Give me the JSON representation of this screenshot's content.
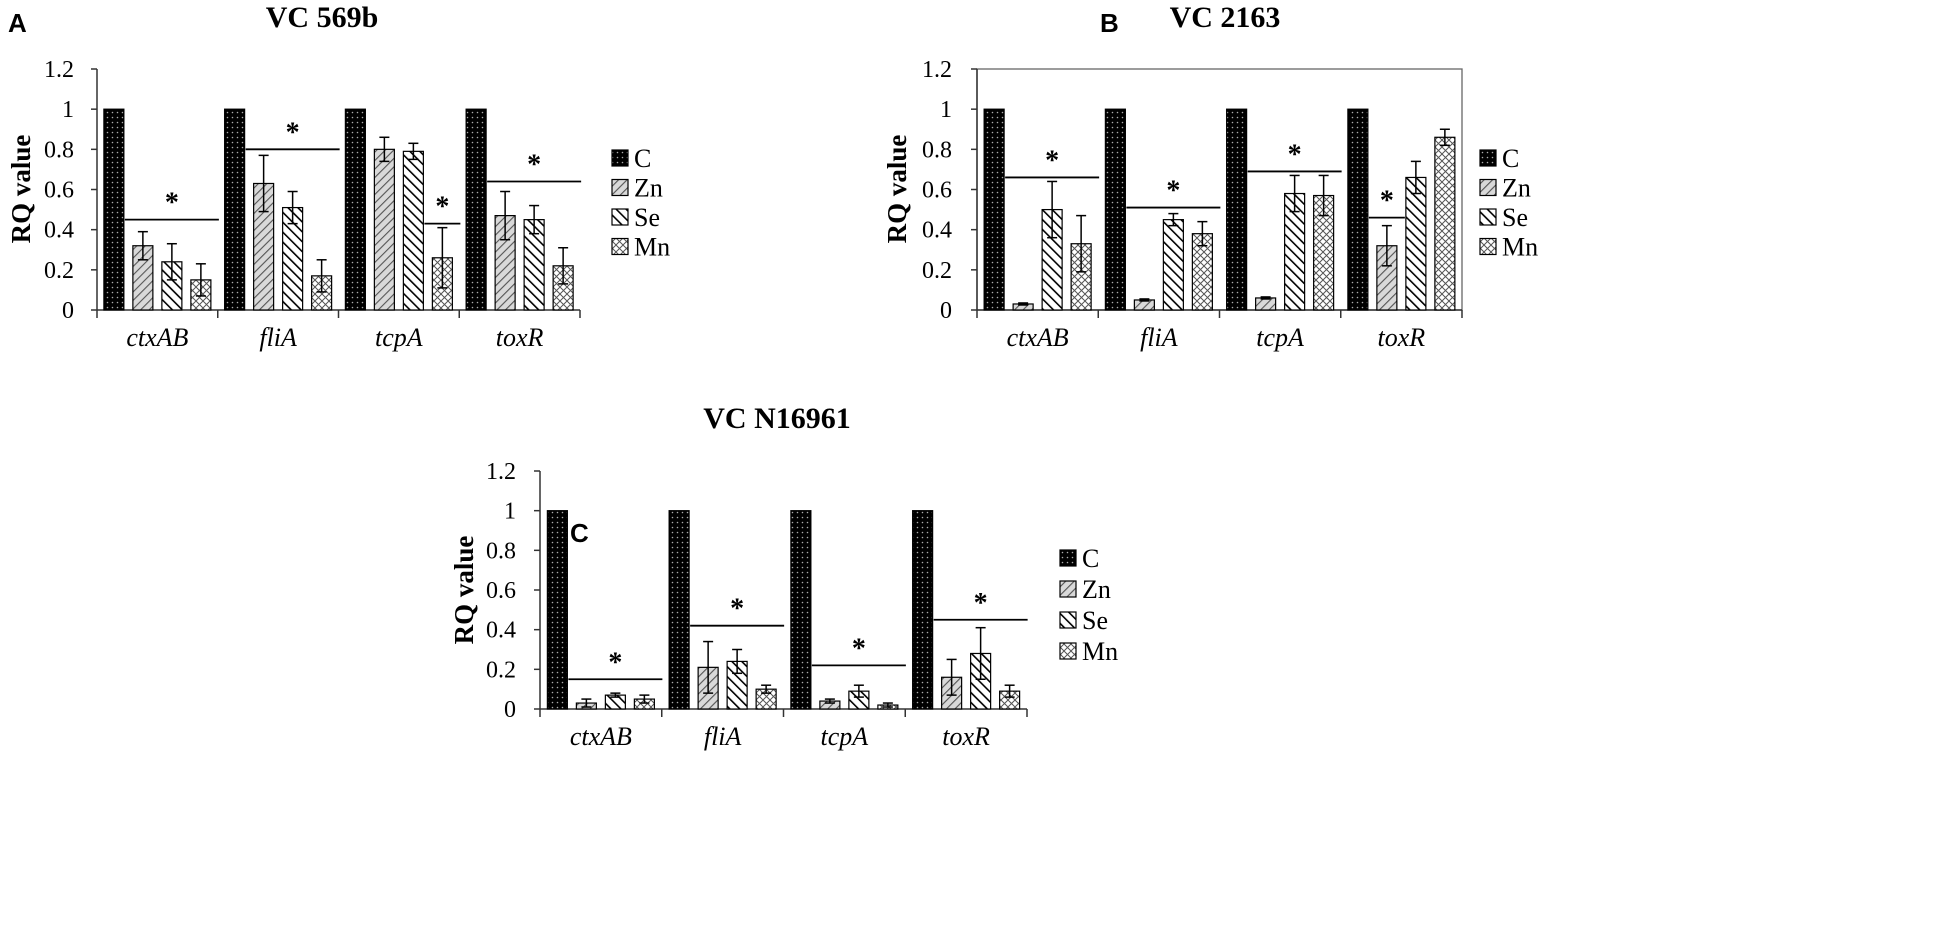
{
  "colors": {
    "C": "#111111",
    "Zn": "#888888",
    "Se": "#222222",
    "Mn": "#666666"
  },
  "chart_data": [
    {
      "panel": "A",
      "type": "bar",
      "title": "VC 569b",
      "ylabel": "RQ value",
      "ylim": [
        0,
        1.2
      ],
      "yticks": [
        "0",
        "0.2",
        "0.4",
        "0.6",
        "0.8",
        "1",
        "1.2"
      ],
      "frame": false,
      "categories": [
        "ctxAB",
        "fliA",
        "tcpA",
        "toxR"
      ],
      "series": [
        {
          "name": "C",
          "values": [
            1,
            1,
            1,
            1
          ],
          "errors": [
            0,
            0,
            0,
            0
          ]
        },
        {
          "name": "Zn",
          "values": [
            0.32,
            0.63,
            0.8,
            0.47
          ],
          "errors": [
            0.07,
            0.14,
            0.06,
            0.12
          ]
        },
        {
          "name": "Se",
          "values": [
            0.24,
            0.51,
            0.79,
            0.45
          ],
          "errors": [
            0.09,
            0.08,
            0.04,
            0.07
          ]
        },
        {
          "name": "Mn",
          "values": [
            0.15,
            0.17,
            0.26,
            0.22
          ],
          "errors": [
            0.08,
            0.08,
            0.15,
            0.09
          ]
        }
      ],
      "significance": [
        {
          "category": 0,
          "from": 1,
          "to": 3,
          "y": 0.45,
          "label": "*"
        },
        {
          "category": 1,
          "from": 1,
          "to": 3,
          "y": 0.8,
          "label": "*"
        },
        {
          "category": 2,
          "from": 3,
          "to": 3,
          "y": 0.43,
          "label": "*"
        },
        {
          "category": 3,
          "from": 1,
          "to": 3,
          "y": 0.64,
          "label": "*"
        }
      ]
    },
    {
      "panel": "B",
      "type": "bar",
      "title": "VC 2163",
      "ylabel": "RQ value",
      "ylim": [
        0,
        1.2
      ],
      "yticks": [
        "0",
        "0.2",
        "0.4",
        "0.6",
        "0.8",
        "1",
        "1.2"
      ],
      "frame": true,
      "categories": [
        "ctxAB",
        "fliA",
        "tcpA",
        "toxR"
      ],
      "series": [
        {
          "name": "C",
          "values": [
            1,
            1,
            1,
            1
          ],
          "errors": [
            0,
            0,
            0,
            0
          ]
        },
        {
          "name": "Zn",
          "values": [
            0.03,
            0.05,
            0.06,
            0.32
          ],
          "errors": [
            0.005,
            0.005,
            0.005,
            0.1
          ]
        },
        {
          "name": "Se",
          "values": [
            0.5,
            0.45,
            0.58,
            0.66
          ],
          "errors": [
            0.14,
            0.03,
            0.09,
            0.08
          ]
        },
        {
          "name": "Mn",
          "values": [
            0.33,
            0.38,
            0.57,
            0.86
          ],
          "errors": [
            0.14,
            0.06,
            0.1,
            0.04
          ]
        }
      ],
      "significance": [
        {
          "category": 0,
          "from": 1,
          "to": 3,
          "y": 0.66,
          "label": "*"
        },
        {
          "category": 1,
          "from": 1,
          "to": 3,
          "y": 0.51,
          "label": "*"
        },
        {
          "category": 2,
          "from": 1,
          "to": 3,
          "y": 0.69,
          "label": "*"
        },
        {
          "category": 3,
          "from": 1,
          "to": 1,
          "y": 0.46,
          "label": "*"
        }
      ]
    },
    {
      "panel": "C",
      "type": "bar",
      "title": "VC N16961",
      "ylabel": "RQ value",
      "ylim": [
        0,
        1.2
      ],
      "yticks": [
        "0",
        "0.2",
        "0.4",
        "0.6",
        "0.8",
        "1",
        "1.2"
      ],
      "frame": false,
      "categories": [
        "ctxAB",
        "fliA",
        "tcpA",
        "toxR"
      ],
      "series": [
        {
          "name": "C",
          "values": [
            1,
            1,
            1,
            1
          ],
          "errors": [
            0,
            0,
            0,
            0
          ]
        },
        {
          "name": "Zn",
          "values": [
            0.03,
            0.21,
            0.04,
            0.16
          ],
          "errors": [
            0.02,
            0.13,
            0.01,
            0.09
          ]
        },
        {
          "name": "Se",
          "values": [
            0.07,
            0.24,
            0.09,
            0.28
          ],
          "errors": [
            0.01,
            0.06,
            0.03,
            0.13
          ]
        },
        {
          "name": "Mn",
          "values": [
            0.05,
            0.1,
            0.02,
            0.09
          ],
          "errors": [
            0.02,
            0.02,
            0.01,
            0.03
          ]
        }
      ],
      "significance": [
        {
          "category": 0,
          "from": 1,
          "to": 3,
          "y": 0.15,
          "label": "*"
        },
        {
          "category": 1,
          "from": 1,
          "to": 3,
          "y": 0.42,
          "label": "*"
        },
        {
          "category": 2,
          "from": 1,
          "to": 3,
          "y": 0.22,
          "label": "*"
        },
        {
          "category": 3,
          "from": 1,
          "to": 3,
          "y": 0.45,
          "label": "*"
        }
      ]
    }
  ]
}
